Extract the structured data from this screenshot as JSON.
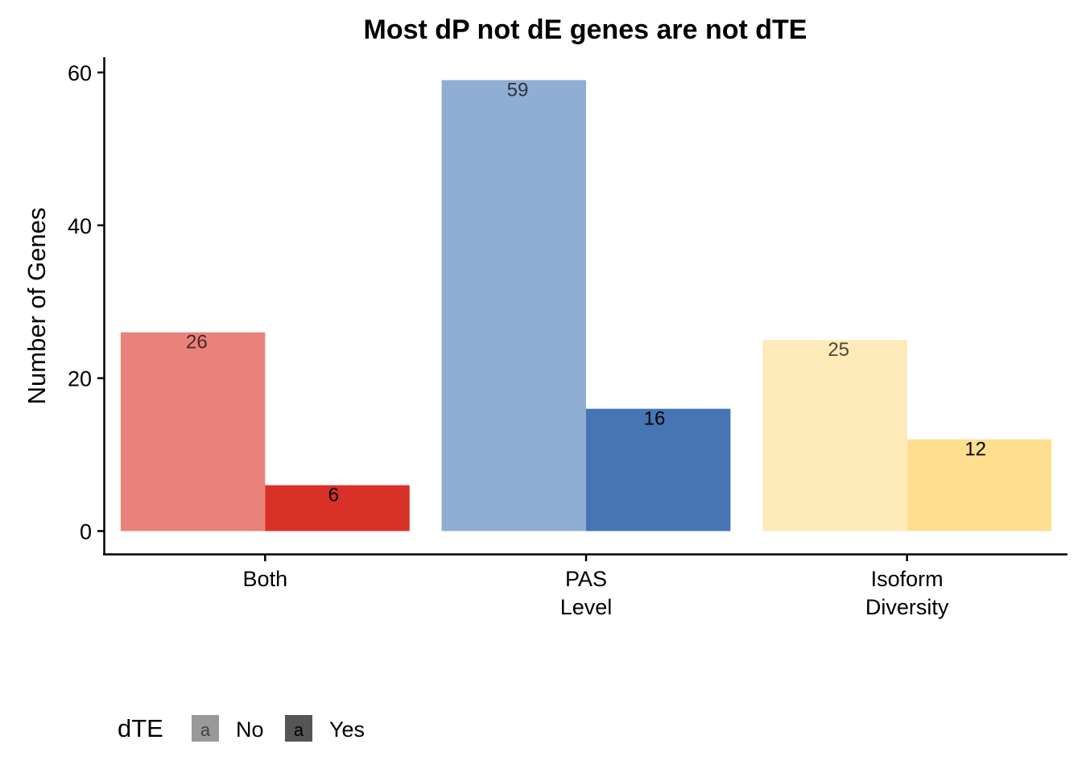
{
  "chart_data": {
    "type": "bar",
    "title": "Most dP not dE genes are not dTE",
    "xlabel": "",
    "ylabel": "Number of Genes",
    "ylim": [
      -3,
      62
    ],
    "yticks": [
      0,
      20,
      40,
      60
    ],
    "grid": false,
    "categories": [
      {
        "lines": [
          "Both"
        ]
      },
      {
        "lines": [
          "PAS",
          "Level"
        ]
      },
      {
        "lines": [
          "Isoform",
          "Diversity"
        ]
      }
    ],
    "series": [
      {
        "name": "No",
        "values": [
          26,
          59,
          25
        ],
        "colors": [
          "#E8827A",
          "#90ADD3",
          "#FEEAB8"
        ]
      },
      {
        "name": "Yes",
        "values": [
          6,
          16,
          12
        ],
        "colors": [
          "#D93027",
          "#4575B4",
          "#FEDF8F"
        ]
      }
    ],
    "legend": {
      "title": "dTE",
      "position": "bottom-left",
      "key_glyph": "a",
      "entries": [
        {
          "label": "No",
          "color": "#999999"
        },
        {
          "label": "Yes",
          "color": "#555555"
        }
      ]
    }
  }
}
